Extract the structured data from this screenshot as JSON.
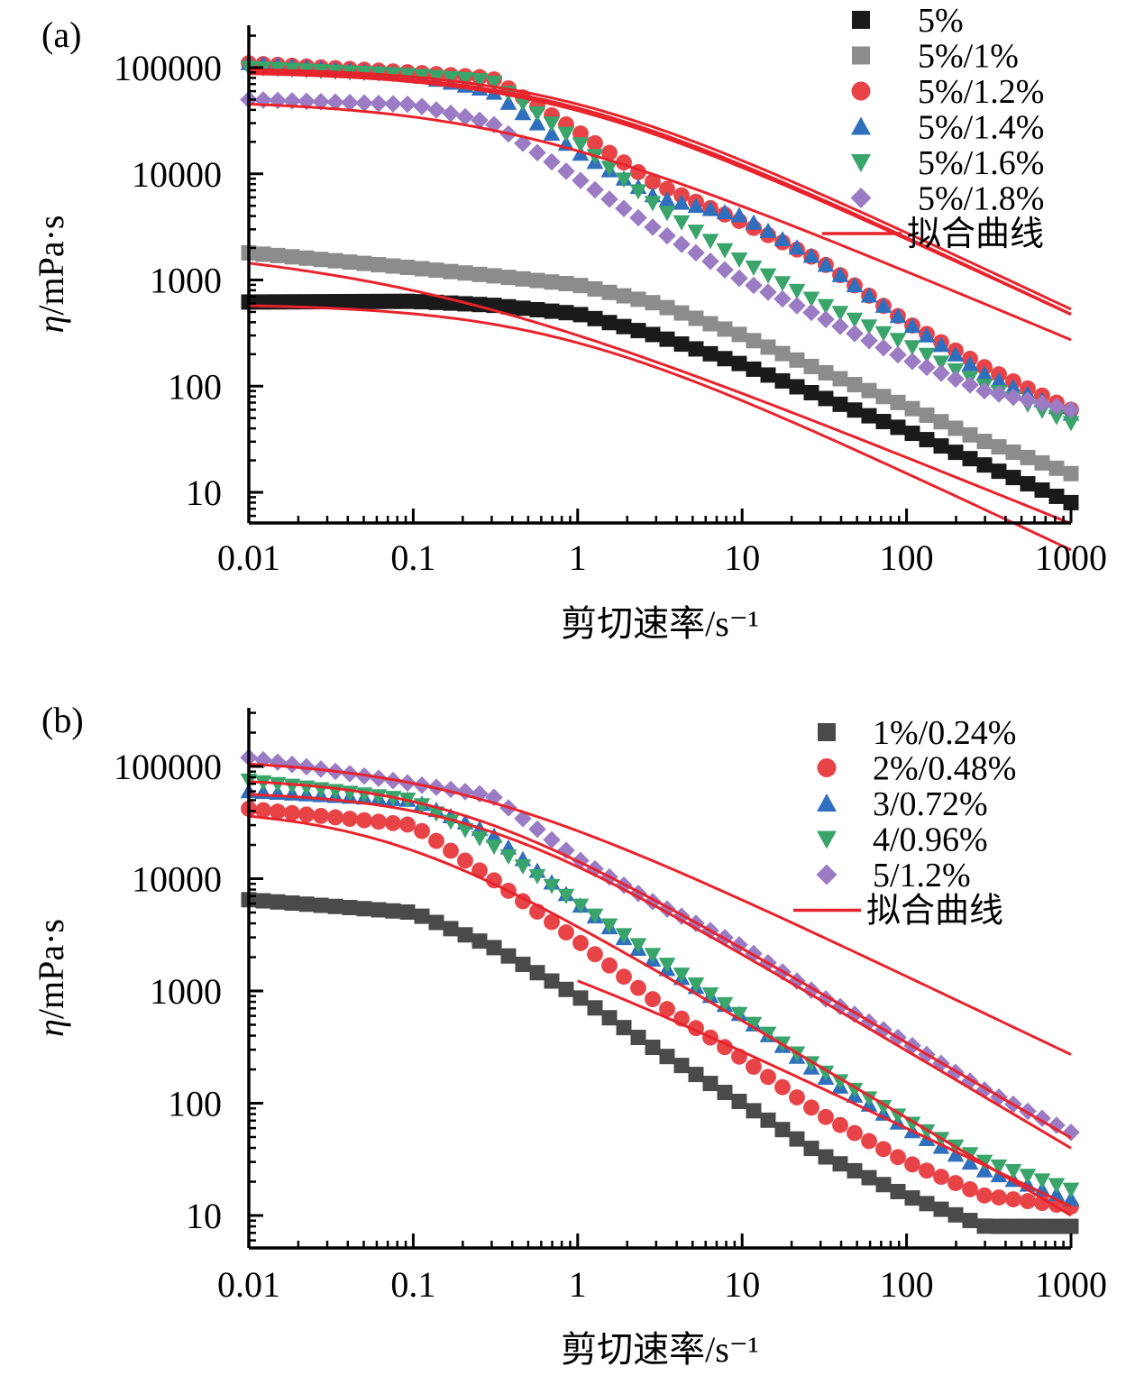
{
  "chart_data": [
    {
      "panel": "(a)",
      "type": "scatter",
      "xscale": "log",
      "yscale": "log",
      "xlim": [
        0.01,
        1000
      ],
      "ylim": [
        5,
        300000
      ],
      "xticks": [
        "0.01",
        "0.1",
        "1",
        "10",
        "100",
        "1000"
      ],
      "xtick_values": [
        0.01,
        0.1,
        1,
        10,
        100,
        1000
      ],
      "yticks": [
        "10",
        "100",
        "1000",
        "10000",
        "100000"
      ],
      "ytick_values": [
        10,
        100,
        1000,
        10000,
        100000
      ],
      "xlabel": "剪切速率/s⁻¹",
      "ylabel_symbol": "η",
      "ylabel_unit": "/mPa·s",
      "legend_position": "top-right",
      "fit_label": "拟合曲线",
      "fit_color": "#e8232c",
      "series": [
        {
          "name": "5%",
          "marker": "square",
          "color": "#1a1a1a",
          "x": [
            0.01,
            0.1,
            0.3,
            1,
            3,
            10,
            30,
            100,
            300,
            1000
          ],
          "y": [
            620,
            630,
            580,
            480,
            300,
            160,
            80,
            38,
            18,
            8
          ]
        },
        {
          "name": "5%/1%",
          "marker": "square",
          "color": "#8c8c8c",
          "x": [
            0.01,
            0.1,
            0.3,
            1,
            3,
            10,
            30,
            100,
            300,
            1000
          ],
          "y": [
            1800,
            1300,
            1100,
            900,
            600,
            300,
            140,
            65,
            30,
            15
          ]
        },
        {
          "name": "5%/1.2%",
          "marker": "circle",
          "color": "#e84448",
          "x": [
            0.01,
            0.1,
            0.3,
            1,
            3,
            10,
            30,
            100,
            300,
            1000
          ],
          "y": [
            110000,
            90000,
            80000,
            25000,
            8000,
            3500,
            1500,
            400,
            150,
            60
          ]
        },
        {
          "name": "5%/1.4%",
          "marker": "triangle-up",
          "color": "#2f6fbd",
          "x": [
            0.01,
            0.1,
            0.3,
            1,
            3,
            10,
            30,
            100,
            300,
            1000
          ],
          "y": [
            110000,
            85000,
            60000,
            16000,
            6000,
            4000,
            1500,
            400,
            130,
            55
          ]
        },
        {
          "name": "5%/1.6%",
          "marker": "triangle-down",
          "color": "#3aa56b",
          "x": [
            0.01,
            0.1,
            0.3,
            1,
            3,
            10,
            30,
            100,
            300,
            1000
          ],
          "y": [
            100000,
            85000,
            75000,
            20000,
            5000,
            1500,
            600,
            250,
            100,
            45
          ]
        },
        {
          "name": "5%/1.8%",
          "marker": "diamond",
          "color": "#9b7bc4",
          "x": [
            0.01,
            0.1,
            0.3,
            1,
            3,
            10,
            30,
            100,
            300,
            1000
          ],
          "y": [
            50000,
            45000,
            30000,
            9000,
            3000,
            1000,
            450,
            180,
            90,
            60
          ]
        }
      ],
      "fits": [
        {
          "eta0": 600,
          "lambda": 1.5,
          "n": 0.27
        },
        {
          "eta0": 1800,
          "lambda": 8,
          "n": 0.45,
          "low_slope": 0.08
        },
        {
          "eta0": 100000,
          "lambda": 1.3,
          "n": 0.27
        },
        {
          "eta0": 95000,
          "lambda": 1.4,
          "n": 0.27
        },
        {
          "eta0": 92000,
          "lambda": 1.5,
          "n": 0.28
        },
        {
          "eta0": 50000,
          "lambda": 3.0,
          "n": 0.35
        }
      ]
    },
    {
      "panel": "(b)",
      "type": "scatter",
      "xscale": "log",
      "yscale": "log",
      "xlim": [
        0.01,
        1000
      ],
      "ylim": [
        5,
        300000
      ],
      "xticks": [
        "0.01",
        "0.1",
        "1",
        "10",
        "100",
        "1000"
      ],
      "xtick_values": [
        0.01,
        0.1,
        1,
        10,
        100,
        1000
      ],
      "yticks": [
        "10",
        "100",
        "1000",
        "10000",
        "100000"
      ],
      "ytick_values": [
        10,
        100,
        1000,
        10000,
        100000
      ],
      "xlabel": "剪切速率/s⁻¹",
      "ylabel_symbol": "η",
      "ylabel_unit": "/mPa·s",
      "legend_position": "top-right",
      "fit_label": "拟合曲线",
      "fit_color": "#e8232c",
      "series": [
        {
          "name": "1%/0.24%",
          "marker": "square",
          "color": "#4a4a4a",
          "x": [
            0.01,
            0.1,
            0.3,
            1,
            3,
            10,
            30,
            100,
            300,
            1000
          ],
          "y": [
            6500,
            5000,
            2500,
            900,
            300,
            100,
            35,
            15,
            8,
            8
          ]
        },
        {
          "name": "2%/0.48%",
          "marker": "circle",
          "color": "#e84448",
          "x": [
            0.01,
            0.1,
            0.3,
            1,
            3,
            10,
            30,
            100,
            300,
            1000
          ],
          "y": [
            42000,
            30000,
            10000,
            2800,
            800,
            250,
            80,
            30,
            15,
            12
          ]
        },
        {
          "name": "3/0.72%",
          "marker": "triangle-up",
          "color": "#2f6fbd",
          "x": [
            0.01,
            0.1,
            0.3,
            1,
            3,
            10,
            30,
            100,
            300,
            1000
          ],
          "y": [
            60000,
            50000,
            25000,
            6000,
            1800,
            600,
            180,
            60,
            25,
            14
          ]
        },
        {
          "name": "4/0.96%",
          "marker": "triangle-down",
          "color": "#3aa56b",
          "x": [
            0.01,
            0.1,
            0.3,
            1,
            3,
            10,
            30,
            100,
            300,
            1000
          ],
          "y": [
            75000,
            50000,
            20000,
            6000,
            2000,
            600,
            200,
            70,
            30,
            17
          ]
        },
        {
          "name": "5/1.2%",
          "marker": "diamond",
          "color": "#9b7bc4",
          "x": [
            0.01,
            0.1,
            0.3,
            1,
            3,
            10,
            30,
            100,
            300,
            1000
          ],
          "y": [
            120000,
            70000,
            55000,
            15000,
            6000,
            2500,
            900,
            350,
            130,
            55
          ]
        }
      ],
      "fits": [
        {
          "eta0": 6500,
          "lambda": 8,
          "n": 0.3,
          "x_range": [
            1,
            1000
          ],
          "plateau": 6
        },
        {
          "eta0": 43000,
          "lambda": 15,
          "n": 0.13
        },
        {
          "eta0": 60000,
          "lambda": 4.5,
          "n": 0.13
        },
        {
          "eta0": 80000,
          "lambda": 6,
          "n": 0.15
        },
        {
          "eta0": 120000,
          "lambda": 6,
          "n": 0.3
        }
      ]
    }
  ]
}
